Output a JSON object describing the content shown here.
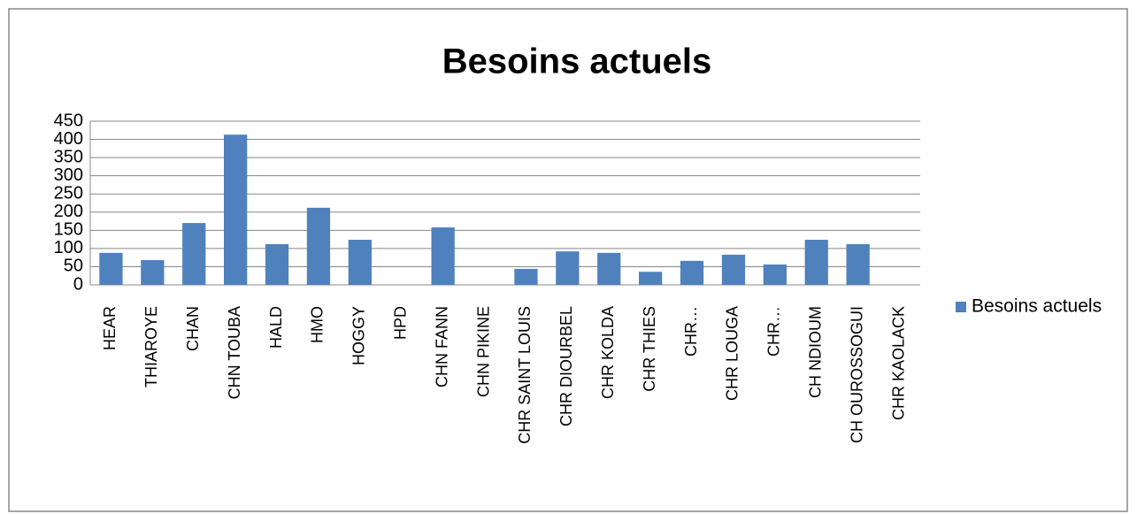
{
  "chart_data": {
    "type": "bar",
    "title": "Besoins actuels",
    "categories": [
      "HEAR",
      "THIAROYE",
      "CHAN",
      "CHN TOUBA",
      "HALD",
      "HMO",
      "HOGGY",
      "HPD",
      "CHN FANN",
      "CHN PIKINE",
      "CHR SAINT LOUIS",
      "CHR DIOURBEL",
      "CHR KOLDA",
      "CHR THIES",
      "CHR…",
      "CHR LOUGA",
      "CHR…",
      "CH NDIOUM",
      "CH OUROSSOGUI",
      "CHR KAOLACK"
    ],
    "series": [
      {
        "name": "Besoins actuels",
        "color": "#4f81bd",
        "values": [
          88,
          68,
          170,
          413,
          112,
          212,
          124,
          0,
          158,
          0,
          44,
          92,
          88,
          36,
          66,
          83,
          56,
          124,
          112,
          0
        ]
      }
    ],
    "ylim": [
      0,
      450
    ],
    "yticks": [
      0,
      50,
      100,
      150,
      200,
      250,
      300,
      350,
      400,
      450
    ],
    "grid": true,
    "legend": "right"
  }
}
